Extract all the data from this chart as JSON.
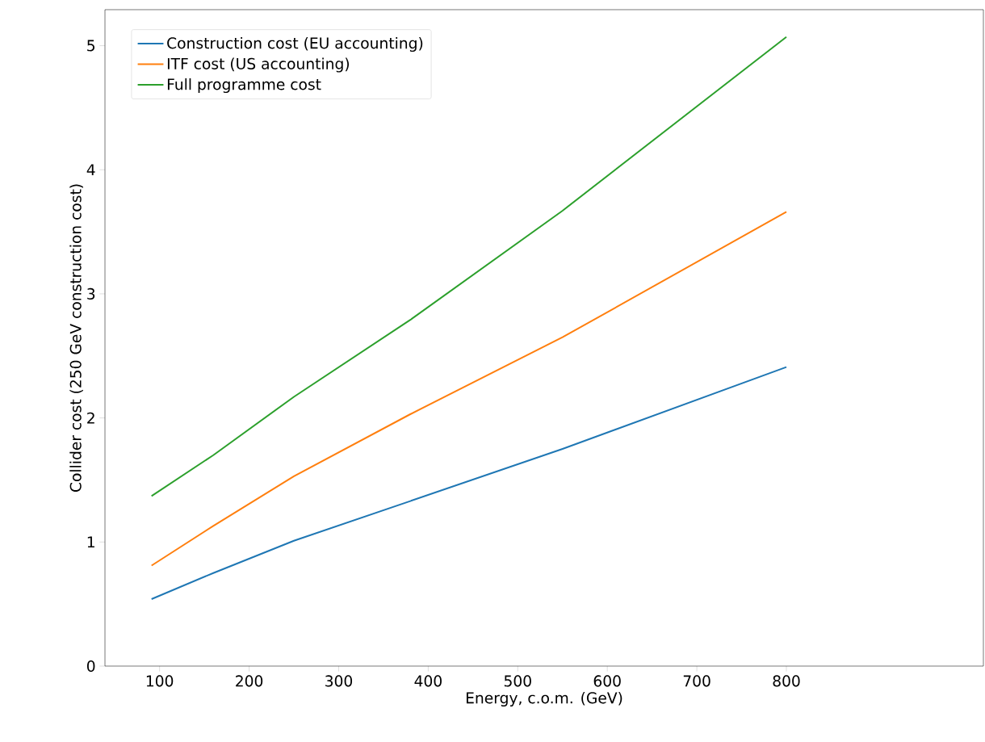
{
  "chart_data": {
    "type": "line",
    "xlabel": "Energy, c.o.m. (GeV)",
    "ylabel": "Collider cost (250 GeV construction cost)",
    "x": [
      91,
      160,
      250,
      380,
      550,
      800
    ],
    "series": [
      {
        "name": "Construction cost (EU accounting)",
        "color": "#1f77b4",
        "values": [
          0.54,
          0.75,
          1.01,
          1.33,
          1.75,
          2.41
        ]
      },
      {
        "name": "ITF cost (US accounting)",
        "color": "#ff7f0e",
        "values": [
          0.81,
          1.13,
          1.53,
          2.03,
          2.65,
          3.66
        ]
      },
      {
        "name": "Full programme cost",
        "color": "#2ca02c",
        "values": [
          1.37,
          1.7,
          2.17,
          2.79,
          3.67,
          5.07
        ]
      }
    ],
    "xlim": [
      39,
      1020
    ],
    "ylim": [
      0,
      5.29
    ],
    "xticks": [
      100,
      200,
      300,
      400,
      500,
      600,
      700,
      800
    ],
    "yticks": [
      0,
      1,
      2,
      3,
      4,
      5
    ],
    "legend": "top left",
    "grid": false,
    "marker": "none",
    "line_style": "solid"
  }
}
